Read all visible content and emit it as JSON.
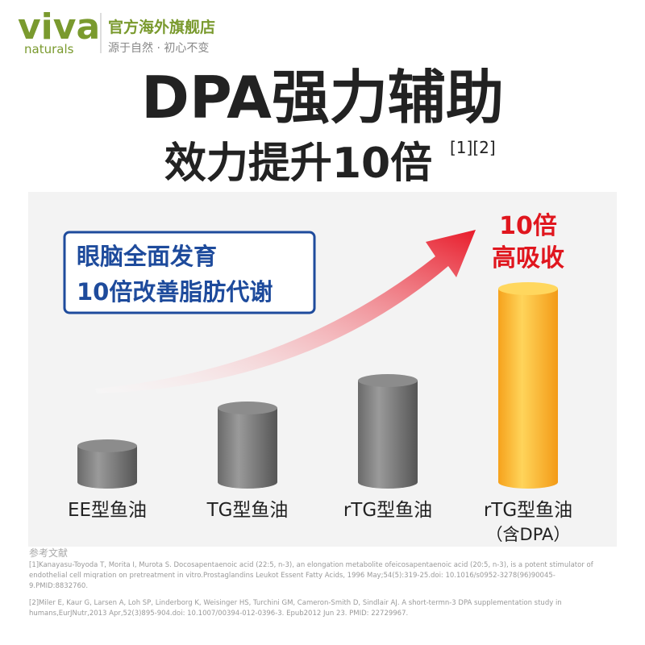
{
  "header": {
    "logo": "viva",
    "logo_sub": "naturals",
    "store": "官方海外旗舰店",
    "slogan": "源于自然 · 初心不变"
  },
  "title": "DPA强力辅助",
  "subtitle": "效力提升10倍",
  "subtitle_refs": "[1][2]",
  "callout": [
    "眼脑全面发育",
    "10倍改善脂肪代谢"
  ],
  "highlight": [
    "10倍",
    "高吸收"
  ],
  "bars": [
    {
      "label": "EE型鱼油"
    },
    {
      "label": "TG型鱼油"
    },
    {
      "label": "rTG型鱼油"
    },
    {
      "label": "rTG型鱼油",
      "note": "（含DPA）"
    }
  ],
  "references": {
    "title": "参考文献",
    "items": [
      "[1]Kanayasu-Toyoda T, Morita I, Murota S. Docosapentaenoic acid (22:5, n-3), an elongation metabolite ofeicosapentaenoic acid (20:5, n-3), is a potent stimulator of endothelial cell miqration on pretreatment in vitro.Prostaglandins Leukot Essent Fatty Acids, 1996 May;54(5):319-25.doi: 10.1016/s0952-3278(96)90045-9.PMID:8832760.",
      "[2]Miler E, Kaur G, Larsen A, Loh SP, Linderborg K, Weisinger HS, Turchini GM, Cameron-Smith D, Sindlair AJ. A short-termn-3 DPA supplementation study in humans,EurJNutr,2013 Apr,52(3)895-904.doi: 10.1007/00394-012-0396-3. Epub2012 Jun 23. PMID: 22729967."
    ]
  }
}
